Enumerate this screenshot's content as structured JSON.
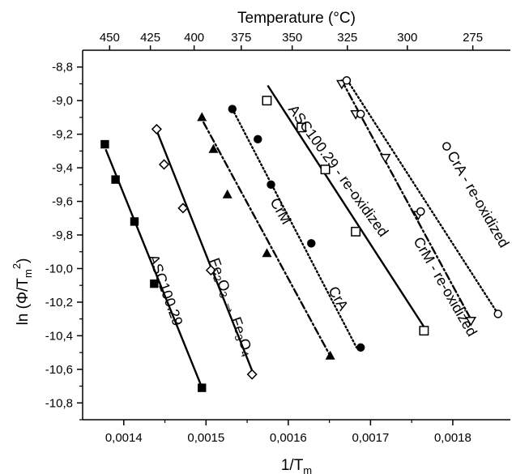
{
  "chart_data": {
    "type": "scatter",
    "title": "",
    "xlabel": "1/T",
    "xlabel_sub": "m",
    "ylabel_prefix": "ln (Φ/T",
    "ylabel_sub": "m",
    "ylabel_sup": "2",
    "ylabel_suffix": ")",
    "top_axis_label": "Temperature (°C)",
    "xlim": [
      0.00135,
      0.00187
    ],
    "ylim": [
      -10.9,
      -8.7
    ],
    "x_ticks": [
      {
        "value": 0.0014,
        "label": "0,0014"
      },
      {
        "value": 0.0015,
        "label": "0,0015"
      },
      {
        "value": 0.0016,
        "label": "0,0016"
      },
      {
        "value": 0.0017,
        "label": "0,0017"
      },
      {
        "value": 0.0018,
        "label": "0,0018"
      }
    ],
    "y_ticks": [
      {
        "value": -8.8,
        "label": "-8,8"
      },
      {
        "value": -9.0,
        "label": "-9,0"
      },
      {
        "value": -9.2,
        "label": "-9,2"
      },
      {
        "value": -9.4,
        "label": "-9,4"
      },
      {
        "value": -9.6,
        "label": "-9,6"
      },
      {
        "value": -9.8,
        "label": "-9,8"
      },
      {
        "value": -10.0,
        "label": "-10,0"
      },
      {
        "value": -10.2,
        "label": "-10,2"
      },
      {
        "value": -10.4,
        "label": "-10,4"
      },
      {
        "value": -10.6,
        "label": "-10,6"
      },
      {
        "value": -10.8,
        "label": "-10,8"
      }
    ],
    "top_ticks": [
      {
        "celsius": 450,
        "label": "450"
      },
      {
        "celsius": 425,
        "label": "425"
      },
      {
        "celsius": 400,
        "label": "400"
      },
      {
        "celsius": 375,
        "label": "375"
      },
      {
        "celsius": 350,
        "label": "350"
      },
      {
        "celsius": 325,
        "label": "325"
      },
      {
        "celsius": 300,
        "label": "300"
      },
      {
        "celsius": 275,
        "label": "275"
      }
    ],
    "series": [
      {
        "name": "ASC100.29",
        "marker": "square-filled",
        "line": "solid",
        "label_parts": [
          {
            "t": "ASC100.29"
          }
        ],
        "label_anchor": [
          0.00145,
          -10.13
        ],
        "label_angle": 70,
        "points": [
          [
            0.001377,
            -9.26
          ],
          [
            0.00139,
            -9.47
          ],
          [
            0.001413,
            -9.72
          ],
          [
            0.001437,
            -10.09
          ],
          [
            0.001495,
            -10.71
          ]
        ],
        "fit": [
          [
            0.001378,
            -9.29
          ],
          [
            0.001496,
            -10.72
          ]
        ]
      },
      {
        "name": "Fe2O3 → Fe3O4",
        "marker": "diamond-open",
        "line": "solid",
        "label_parts": [
          {
            "t": "Fe"
          },
          {
            "t": "2",
            "sub": true
          },
          {
            "t": "O"
          },
          {
            "t": "3",
            "sub": true
          },
          {
            "t": " → Fe"
          },
          {
            "t": "3",
            "sub": true
          },
          {
            "t": "O"
          },
          {
            "t": "4",
            "sub": true
          }
        ],
        "label_anchor": [
          0.00153,
          -10.23
        ],
        "label_angle": 70,
        "points": [
          [
            0.00144,
            -9.17
          ],
          [
            0.001449,
            -9.38
          ],
          [
            0.001472,
            -9.64
          ],
          [
            0.001506,
            -10.01
          ],
          [
            0.001556,
            -10.63
          ]
        ],
        "fit": [
          [
            0.001441,
            -9.19
          ],
          [
            0.001557,
            -10.62
          ]
        ]
      },
      {
        "name": "CrM",
        "marker": "triangle-filled",
        "line": "dash-dot",
        "label_parts": [
          {
            "t": "CrM"
          }
        ],
        "label_anchor": [
          0.00159,
          -9.66
        ],
        "label_angle": 60,
        "points": [
          [
            0.001495,
            -9.1
          ],
          [
            0.001509,
            -9.29
          ],
          [
            0.001526,
            -9.56
          ],
          [
            0.001574,
            -9.91
          ],
          [
            0.001651,
            -10.52
          ]
        ],
        "fit": [
          [
            0.001497,
            -9.13
          ],
          [
            0.001651,
            -10.52
          ]
        ]
      },
      {
        "name": "CrA",
        "marker": "circle-filled",
        "line": "dotted",
        "label_parts": [
          {
            "t": "CrA"
          }
        ],
        "label_anchor": [
          0.00166,
          -10.18
        ],
        "label_angle": 60,
        "points": [
          [
            0.001532,
            -9.05
          ],
          [
            0.001563,
            -9.23
          ],
          [
            0.001579,
            -9.5
          ],
          [
            0.001628,
            -9.85
          ],
          [
            0.001688,
            -10.47
          ]
        ],
        "fit": [
          [
            0.001532,
            -9.05
          ],
          [
            0.001683,
            -10.47
          ]
        ]
      },
      {
        "name": "ASC100.29 - re-oxidized",
        "marker": "square-open",
        "line": "solid",
        "label_parts": [
          {
            "t": "ASC100.29 - re-oxidized"
          }
        ],
        "label_anchor": [
          0.00166,
          -9.42
        ],
        "label_angle": 54,
        "points": [
          [
            0.001574,
            -9.0
          ],
          [
            0.001616,
            -9.16
          ],
          [
            0.001645,
            -9.41
          ],
          [
            0.001682,
            -9.78
          ],
          [
            0.001765,
            -10.37
          ]
        ],
        "fit": [
          [
            0.001575,
            -8.91
          ],
          [
            0.001768,
            -10.37
          ]
        ]
      },
      {
        "name": "CrM - re-oxidized",
        "marker": "triangle-down-open",
        "line": "dash-dot",
        "label_parts": [
          {
            "t": "CrM - re-oxidized"
          }
        ],
        "label_anchor": [
          0.00179,
          -10.11
        ],
        "label_angle": 60,
        "points": [
          [
            0.001665,
            -8.9
          ],
          [
            0.001682,
            -9.08
          ],
          [
            0.001718,
            -9.34
          ],
          [
            0.001758,
            -9.68
          ],
          [
            0.001822,
            -10.31
          ]
        ],
        "fit": [
          [
            0.001665,
            -8.88
          ],
          [
            0.001824,
            -10.32
          ]
        ]
      },
      {
        "name": "CrA - re-oxidized",
        "marker": "circle-open",
        "line": "dotted",
        "label_parts": [
          {
            "t": "CrA - re-oxidized"
          }
        ],
        "label_anchor": [
          0.00183,
          -9.59
        ],
        "label_angle": 60,
        "points": [
          [
            0.001671,
            -8.88
          ],
          [
            0.001688,
            -9.08
          ],
          [
            0.001761,
            -9.66
          ],
          [
            0.001855,
            -10.27
          ]
        ],
        "fit": [
          [
            0.001672,
            -8.88
          ],
          [
            0.001855,
            -10.27
          ]
        ],
        "label_marker": "circle-open"
      }
    ]
  }
}
